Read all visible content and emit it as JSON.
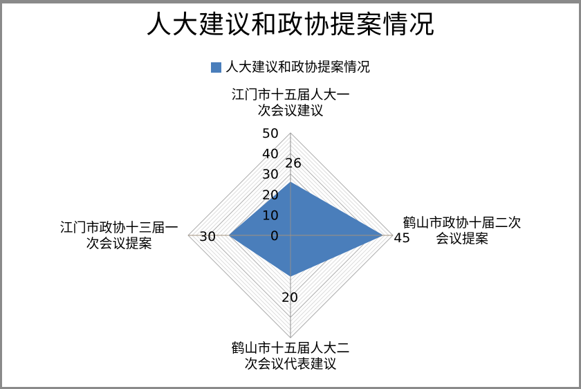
{
  "window": {
    "background": "#ffffff",
    "border_color": "#8a8a8a"
  },
  "chart_data": {
    "type": "radar",
    "title": "人大建议和政协提案情况",
    "legend": [
      {
        "label": "人大建议和政协提案情况",
        "color": "#4a7ebb"
      }
    ],
    "legend_position": "top",
    "categories": [
      "江门市十五届人大一\n次会议建议",
      "鹤山市政协十届二次\n会议提案",
      "鹤山市十五届人大二\n次会议代表建议",
      "江门市政协十三届一\n次会议提案"
    ],
    "series": [
      {
        "name": "人大建议和政协提案情况",
        "values": [
          26,
          45,
          20,
          30
        ],
        "fill": "#4a7ebb"
      }
    ],
    "data_labels": [
      "26",
      "45",
      "20",
      "30"
    ],
    "axis": {
      "min": 0,
      "max": 50,
      "major_unit": 10,
      "minor_unit": 2,
      "ticks": [
        "0",
        "10",
        "20",
        "30",
        "40",
        "50"
      ]
    },
    "grid": true,
    "colors": {
      "minor_grid": "#dcdcdc",
      "major_grid": "#adadad",
      "vertical_axis": "#8f8f8f",
      "horizontal_axis": "#a3937f",
      "text": "#000000"
    }
  }
}
